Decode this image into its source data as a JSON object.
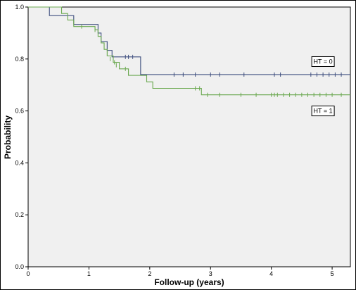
{
  "chart_data": {
    "type": "line",
    "xlabel": "Follow-up (years)",
    "ylabel": "Probability",
    "xlim": [
      0,
      5.3
    ],
    "ylim": [
      0,
      1.0
    ],
    "x_ticks": [
      "0",
      "1",
      "2",
      "3",
      "4",
      "5"
    ],
    "y_ticks": [
      "0.0",
      "0.2",
      "0.4",
      "0.6",
      "0.8",
      "1.0"
    ],
    "grid": false,
    "series": [
      {
        "name": "HT = 0",
        "color": "#3f4f7f",
        "label_at": [
          4.85,
          0.79
        ],
        "steps": [
          [
            0,
            1.0
          ],
          [
            0.35,
            0.967
          ],
          [
            0.75,
            0.933
          ],
          [
            1.15,
            0.9
          ],
          [
            1.2,
            0.867
          ],
          [
            1.3,
            0.833
          ],
          [
            1.38,
            0.808
          ],
          [
            1.85,
            0.74
          ],
          [
            5.3,
            0.74
          ]
        ],
        "censored": [
          [
            1.6,
            0.808
          ],
          [
            1.65,
            0.808
          ],
          [
            1.72,
            0.808
          ],
          [
            2.4,
            0.74
          ],
          [
            2.55,
            0.74
          ],
          [
            2.75,
            0.74
          ],
          [
            3.0,
            0.74
          ],
          [
            3.15,
            0.74
          ],
          [
            3.55,
            0.74
          ],
          [
            4.05,
            0.74
          ],
          [
            4.15,
            0.74
          ],
          [
            4.65,
            0.74
          ],
          [
            4.75,
            0.74
          ],
          [
            4.85,
            0.74
          ],
          [
            4.95,
            0.74
          ],
          [
            5.05,
            0.74
          ],
          [
            5.15,
            0.74
          ]
        ]
      },
      {
        "name": "HT = 1",
        "color": "#6aa84f",
        "label_at": [
          4.85,
          0.6
        ],
        "steps": [
          [
            0,
            1.0
          ],
          [
            0.55,
            0.975
          ],
          [
            0.65,
            0.95
          ],
          [
            0.75,
            0.925
          ],
          [
            1.1,
            0.912
          ],
          [
            1.15,
            0.887
          ],
          [
            1.2,
            0.862
          ],
          [
            1.25,
            0.837
          ],
          [
            1.3,
            0.812
          ],
          [
            1.4,
            0.787
          ],
          [
            1.5,
            0.762
          ],
          [
            1.65,
            0.737
          ],
          [
            1.95,
            0.712
          ],
          [
            2.05,
            0.687
          ],
          [
            2.85,
            0.662
          ],
          [
            5.3,
            0.662
          ]
        ],
        "censored": [
          [
            0.88,
            0.925
          ],
          [
            1.1,
            0.912
          ],
          [
            1.35,
            0.8
          ],
          [
            1.42,
            0.787
          ],
          [
            1.45,
            0.776
          ],
          [
            1.6,
            0.762
          ],
          [
            2.75,
            0.687
          ],
          [
            2.82,
            0.687
          ],
          [
            2.95,
            0.662
          ],
          [
            3.15,
            0.662
          ],
          [
            3.5,
            0.662
          ],
          [
            3.75,
            0.662
          ],
          [
            4.0,
            0.662
          ],
          [
            4.05,
            0.662
          ],
          [
            4.1,
            0.662
          ],
          [
            4.2,
            0.662
          ],
          [
            4.3,
            0.662
          ],
          [
            4.4,
            0.662
          ],
          [
            4.5,
            0.662
          ],
          [
            4.6,
            0.662
          ],
          [
            4.7,
            0.662
          ],
          [
            4.8,
            0.662
          ],
          [
            4.9,
            0.662
          ],
          [
            5.0,
            0.662
          ],
          [
            5.15,
            0.662
          ]
        ]
      }
    ]
  }
}
